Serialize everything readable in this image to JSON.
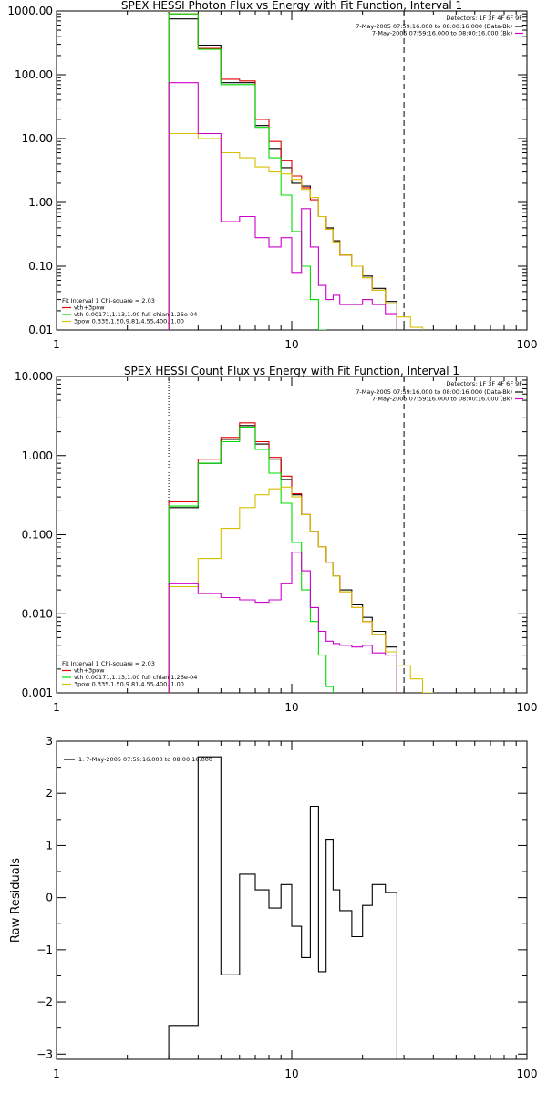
{
  "chart_data": [
    {
      "type": "line",
      "title": "SPEX HESSI Photon Flux vs Energy with Fit Function, Interval 1",
      "x_scale": "log",
      "y_scale": "log",
      "xlim": [
        1,
        100
      ],
      "ylim": [
        0.01,
        1000
      ],
      "x_tick_labels": [
        "1",
        "10",
        "100"
      ],
      "y_tick_labels": [
        "1000.00",
        "100.00",
        "10.00",
        "1.00",
        "0.10",
        "0.01"
      ],
      "y_tick_values": [
        1000,
        100,
        10,
        1,
        0.1,
        0.01
      ],
      "detectors_text": "Detectors: 1F 3F 4F 6F 9F",
      "legend_right": [
        {
          "text": "7-May-2005 07:59:16.000 to 08:00:16.000 (Data-Bk)",
          "color": "#000000"
        },
        {
          "text": "7-May-2005 07:59:16.000 to 08:00:16.000 (Bk)",
          "color": "#cc00cc"
        }
      ],
      "fit_text": "Fit Interval 1   Chi-square = 2.03",
      "legend_left": [
        {
          "text": "vth+3pow",
          "color": "#e00000"
        },
        {
          "text": "vth 0.00171,1.13,1.00  full chian 1.26e-04",
          "color": "#00dd00"
        },
        {
          "text": "3pow 0.335,1.50,9.81,4.55,400.,1.00",
          "color": "#d8c000"
        }
      ],
      "vlines": [
        {
          "x": 3,
          "style": "dotted",
          "color": "#d8a000"
        },
        {
          "x": 30,
          "style": "dashed",
          "color": "#000000"
        }
      ],
      "edges": [
        3,
        4,
        5,
        6,
        7,
        8,
        9,
        10,
        11,
        12,
        13,
        14,
        15,
        16,
        18,
        20,
        22,
        25,
        28,
        32,
        36,
        40
      ],
      "series": [
        {
          "name": "Data-Bk",
          "color": "#000000",
          "values": [
            750,
            290,
            75,
            75,
            16,
            7.0,
            3.5,
            2.0,
            1.8,
            1.2,
            0.6,
            0.4,
            0.25,
            0.15,
            0.1,
            0.07,
            0.045,
            0.028,
            null,
            null,
            null
          ]
        },
        {
          "name": "vth+3pow",
          "color": "#e00000",
          "values": [
            900,
            260,
            85,
            80,
            20,
            9.0,
            4.5,
            2.6,
            1.7,
            1.1,
            0.6,
            0.38,
            0.24,
            0.15,
            0.1,
            0.066,
            0.042,
            0.026,
            null,
            null,
            null
          ]
        },
        {
          "name": "vth",
          "color": "#00dd00",
          "values": [
            900,
            250,
            70,
            70,
            15,
            5.0,
            1.3,
            0.35,
            0.1,
            0.03,
            0.01,
            0.004,
            null,
            null,
            null,
            null,
            null,
            null,
            null,
            null,
            null
          ]
        },
        {
          "name": "3pow",
          "color": "#d8c000",
          "values": [
            12,
            10,
            6.0,
            5.0,
            3.6,
            3.0,
            2.8,
            2.3,
            1.6,
            1.2,
            0.6,
            0.38,
            0.24,
            0.15,
            0.1,
            0.066,
            0.042,
            0.026,
            0.016,
            0.011,
            0.008
          ]
        },
        {
          "name": "Bk",
          "color": "#cc00cc",
          "values": [
            75,
            12,
            0.5,
            0.6,
            0.28,
            0.2,
            0.28,
            0.08,
            0.8,
            0.2,
            0.05,
            0.03,
            0.035,
            0.025,
            0.025,
            0.03,
            0.025,
            0.018,
            null,
            null,
            null
          ]
        }
      ]
    },
    {
      "type": "line",
      "title": "SPEX HESSI Count Flux vs Energy with Fit Function, Interval 1",
      "x_scale": "log",
      "y_scale": "log",
      "xlim": [
        1,
        100
      ],
      "ylim": [
        0.001,
        10
      ],
      "x_tick_labels": [
        "1",
        "10",
        "100"
      ],
      "y_tick_labels": [
        "10.000",
        "1.000",
        "0.100",
        "0.010",
        "0.001"
      ],
      "y_tick_values": [
        10,
        1,
        0.1,
        0.01,
        0.001
      ],
      "detectors_text": "Detectors: 1F 3F 4F 6F 9F",
      "legend_right": [
        {
          "text": "7-May-2005 07:59:16.000 to 08:00:16.000 (Data-Bk)",
          "color": "#000000"
        },
        {
          "text": "7-May-2005 07:59:16.000 to 08:00:16.000 (Bk)",
          "color": "#cc00cc"
        }
      ],
      "fit_text": "Fit Interval 1   Chi-square = 2.03",
      "legend_left": [
        {
          "text": "vth+3pow",
          "color": "#e00000"
        },
        {
          "text": "vth 0.00171,1.13,1.00  full chian 1.26e-04",
          "color": "#00dd00"
        },
        {
          "text": "3pow 0.335,1.50,9.81,4.55,400.,1.00",
          "color": "#d8c000"
        }
      ],
      "vlines": [
        {
          "x": 3,
          "style": "dotted",
          "color": "#000000"
        },
        {
          "x": 30,
          "style": "dashed",
          "color": "#000000"
        }
      ],
      "edges": [
        3,
        4,
        5,
        6,
        7,
        8,
        9,
        10,
        11,
        12,
        13,
        14,
        15,
        16,
        18,
        20,
        22,
        25,
        28,
        32,
        36,
        40
      ],
      "series": [
        {
          "name": "Data-Bk",
          "color": "#000000",
          "values": [
            0.22,
            0.8,
            1.6,
            2.4,
            1.4,
            0.9,
            0.5,
            0.32,
            0.18,
            0.11,
            0.07,
            0.045,
            0.03,
            0.02,
            0.013,
            0.009,
            0.006,
            0.0038,
            null,
            null,
            null
          ]
        },
        {
          "name": "vth+3pow",
          "color": "#e00000",
          "values": [
            0.26,
            0.9,
            1.7,
            2.6,
            1.5,
            0.95,
            0.55,
            0.33,
            0.18,
            0.11,
            0.07,
            0.045,
            0.03,
            0.019,
            0.012,
            0.008,
            0.0055,
            0.0033,
            null,
            null,
            null
          ]
        },
        {
          "name": "vth",
          "color": "#00dd00",
          "values": [
            0.23,
            0.8,
            1.5,
            2.3,
            1.2,
            0.6,
            0.25,
            0.08,
            0.02,
            0.008,
            0.003,
            0.0012,
            null,
            null,
            null,
            null,
            null,
            null,
            null,
            null,
            null
          ]
        },
        {
          "name": "3pow",
          "color": "#d8c000",
          "values": [
            0.022,
            0.05,
            0.12,
            0.22,
            0.32,
            0.38,
            0.4,
            0.3,
            0.18,
            0.11,
            0.07,
            0.045,
            0.03,
            0.019,
            0.012,
            0.008,
            0.0055,
            0.0033,
            0.0022,
            0.0015,
            0.001
          ]
        },
        {
          "name": "Bk",
          "color": "#cc00cc",
          "values": [
            0.024,
            0.018,
            0.016,
            0.015,
            0.014,
            0.015,
            0.024,
            0.06,
            0.035,
            0.012,
            0.006,
            0.0045,
            0.0042,
            0.004,
            0.0038,
            0.004,
            0.0032,
            0.003,
            null,
            null,
            null
          ]
        }
      ]
    },
    {
      "type": "line",
      "title": "",
      "x_scale": "log",
      "y_scale": "linear",
      "xlim": [
        1,
        100
      ],
      "ylim": [
        -3.1,
        3.0
      ],
      "x_tick_labels": [
        "1",
        "10",
        "100"
      ],
      "y_tick_labels": [
        "3",
        "2",
        "1",
        "0",
        "−1",
        "−2",
        "−3"
      ],
      "y_tick_values": [
        3,
        2,
        1,
        0,
        -1,
        -2,
        -3
      ],
      "ylabel": "Raw Residuals",
      "legend_entry": "1.  7-May-2005 07:59:16.000 to 08:00:16.000",
      "edges": [
        3,
        4,
        5,
        6,
        7,
        8,
        9,
        10,
        11,
        12,
        13,
        14,
        15,
        16,
        18,
        20,
        22,
        25,
        28,
        30
      ],
      "series": [
        {
          "name": "1.  7-May-2005 07:59:16.000 to 08:00:16.000",
          "color": "#000000",
          "values": [
            -2.45,
            2.7,
            -1.48,
            0.45,
            0.15,
            -0.2,
            0.25,
            -0.55,
            -1.15,
            1.75,
            -1.42,
            1.12,
            0.15,
            -0.25,
            -0.75,
            -0.15,
            0.25,
            0.1
          ]
        }
      ]
    }
  ]
}
